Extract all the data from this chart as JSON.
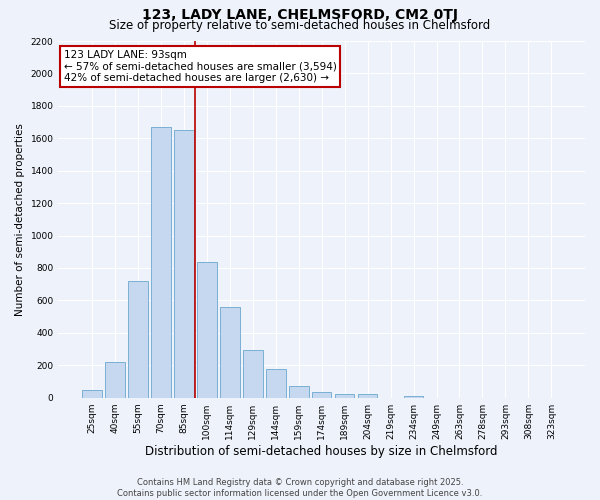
{
  "title": "123, LADY LANE, CHELMSFORD, CM2 0TJ",
  "subtitle": "Size of property relative to semi-detached houses in Chelmsford",
  "xlabel": "Distribution of semi-detached houses by size in Chelmsford",
  "ylabel": "Number of semi-detached properties",
  "categories": [
    "25sqm",
    "40sqm",
    "55sqm",
    "70sqm",
    "85sqm",
    "100sqm",
    "114sqm",
    "129sqm",
    "144sqm",
    "159sqm",
    "174sqm",
    "189sqm",
    "204sqm",
    "219sqm",
    "234sqm",
    "249sqm",
    "263sqm",
    "278sqm",
    "293sqm",
    "308sqm",
    "323sqm"
  ],
  "values": [
    45,
    220,
    720,
    1670,
    1650,
    840,
    560,
    295,
    180,
    70,
    35,
    25,
    20,
    0,
    10,
    0,
    0,
    0,
    0,
    0,
    0
  ],
  "bar_color": "#c5d8ef",
  "bar_edge_color": "#7aafd4",
  "vline_x": 4.5,
  "annotation_title": "123 LADY LANE: 93sqm",
  "annotation_line2": "← 57% of semi-detached houses are smaller (3,594)",
  "annotation_line3": "42% of semi-detached houses are larger (2,630) →",
  "annotation_box_color": "#ffffff",
  "annotation_box_edge_color": "#bb0000",
  "vline_color": "#bb0000",
  "ylim": [
    0,
    2200
  ],
  "yticks": [
    0,
    200,
    400,
    600,
    800,
    1000,
    1200,
    1400,
    1600,
    1800,
    2000,
    2200
  ],
  "background_color": "#eef2fa",
  "grid_color": "#ffffff",
  "footnote": "Contains HM Land Registry data © Crown copyright and database right 2025.\nContains public sector information licensed under the Open Government Licence v3.0.",
  "title_fontsize": 10,
  "subtitle_fontsize": 8.5,
  "xlabel_fontsize": 8.5,
  "ylabel_fontsize": 7.5,
  "tick_fontsize": 6.5,
  "annot_fontsize": 7.5,
  "footnote_fontsize": 6.0
}
